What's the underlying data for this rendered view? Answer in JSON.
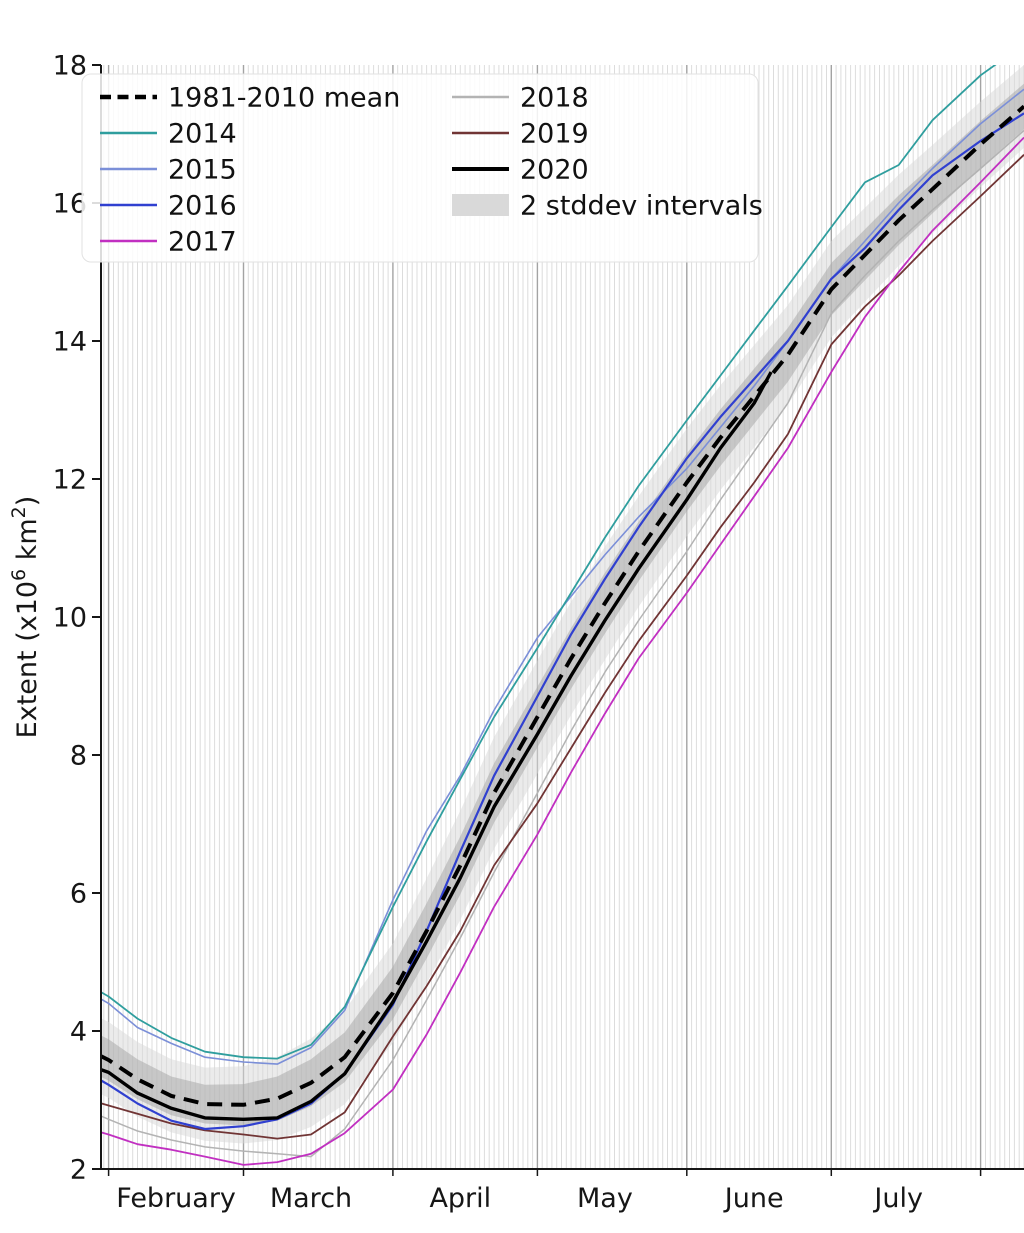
{
  "page": {
    "background": "#ffffff"
  },
  "chart_data": {
    "type": "line",
    "title": "",
    "xlabel": "",
    "ylabel": "Extent (x10^6 km^2)",
    "ylabel_parts": {
      "prefix": "Extent (x10",
      "sup1": "6",
      "mid": " km",
      "sup2": "2",
      "suffix": ")"
    },
    "y_axis": {
      "ticks": [
        2,
        4,
        6,
        8,
        10,
        12,
        14,
        16,
        18
      ],
      "range": [
        2,
        18
      ],
      "tick_color": "#161616"
    },
    "x_axis": {
      "start_date": "Jan 30",
      "end_date": "Aug 10",
      "range_days": [
        0,
        192
      ],
      "month_labels": [
        "February",
        "March",
        "April",
        "May",
        "June",
        "July"
      ],
      "month_label_days": [
        16,
        44,
        75,
        105,
        136,
        166
      ],
      "month_first_days": [
        2,
        30,
        61,
        91,
        122,
        152,
        183
      ],
      "gridlines": "daily-vertical",
      "minor_grid_color": "#dcdcdc",
      "major_grid_color": "#a3a3a3"
    },
    "sample_dates": [
      "Jan 30",
      "Feb 1",
      "Feb 7",
      "Feb 14",
      "Feb 21",
      "Mar 1",
      "Mar 8",
      "Mar 15",
      "Mar 22",
      "Apr 1",
      "Apr 8",
      "Apr 15",
      "Apr 22",
      "May 1",
      "May 8",
      "May 15",
      "May 22",
      "Jun 1",
      "Jun 8",
      "Jun 15",
      "Jun 22",
      "Jul 1",
      "Jul 8",
      "Jul 15",
      "Jul 22",
      "Aug 1",
      "Aug 10"
    ],
    "sample_days": [
      0,
      2,
      8,
      15,
      22,
      30,
      37,
      44,
      51,
      61,
      68,
      75,
      82,
      91,
      98,
      105,
      112,
      122,
      129,
      136,
      143,
      152,
      159,
      166,
      173,
      183,
      192
    ],
    "series": [
      {
        "name": "2018",
        "color": "#b3b3b3",
        "line_width": 1.5,
        "dash": null,
        "days": [
          0,
          2,
          8,
          15,
          22,
          30,
          37,
          44,
          51,
          61,
          68,
          75,
          82,
          91,
          98,
          105,
          112,
          122,
          129,
          136,
          143,
          152,
          159,
          166,
          173,
          183,
          192
        ],
        "values": [
          2.78,
          2.72,
          2.55,
          2.42,
          2.32,
          2.26,
          2.22,
          2.18,
          2.58,
          3.58,
          4.45,
          5.35,
          6.3,
          7.45,
          8.35,
          9.2,
          9.95,
          10.95,
          11.7,
          12.4,
          13.1,
          14.4,
          14.95,
          15.45,
          15.9,
          16.5,
          17.05
        ]
      },
      {
        "name": "2019",
        "color": "#703434",
        "line_width": 1.8,
        "dash": null,
        "days": [
          0,
          2,
          8,
          15,
          22,
          30,
          37,
          44,
          51,
          61,
          68,
          75,
          82,
          91,
          98,
          105,
          112,
          122,
          129,
          136,
          143,
          152,
          159,
          166,
          173,
          183,
          192
        ],
        "values": [
          2.96,
          2.92,
          2.8,
          2.66,
          2.56,
          2.5,
          2.44,
          2.5,
          2.82,
          3.92,
          4.65,
          5.45,
          6.4,
          7.3,
          8.1,
          8.9,
          9.65,
          10.6,
          11.3,
          11.95,
          12.65,
          13.95,
          14.5,
          14.95,
          15.45,
          16.1,
          16.7
        ]
      },
      {
        "name": "2017",
        "color": "#c12fc1",
        "line_width": 1.8,
        "dash": null,
        "days": [
          0,
          2,
          8,
          15,
          22,
          30,
          37,
          44,
          51,
          61,
          68,
          75,
          82,
          91,
          98,
          105,
          112,
          122,
          129,
          136,
          143,
          152,
          159,
          166,
          173,
          183,
          192
        ],
        "values": [
          2.54,
          2.5,
          2.36,
          2.28,
          2.18,
          2.06,
          2.1,
          2.22,
          2.52,
          3.15,
          3.95,
          4.85,
          5.8,
          6.85,
          7.75,
          8.6,
          9.4,
          10.35,
          11.05,
          11.75,
          12.45,
          13.55,
          14.35,
          15.0,
          15.6,
          16.3,
          16.95
        ]
      },
      {
        "name": "2015",
        "color": "#7b8fd8",
        "line_width": 1.6,
        "dash": null,
        "days": [
          0,
          2,
          8,
          15,
          22,
          30,
          37,
          44,
          51,
          61,
          68,
          75,
          82,
          91,
          98,
          105,
          112,
          122,
          129,
          136,
          143,
          152,
          159,
          166,
          173,
          183,
          192
        ],
        "values": [
          4.48,
          4.4,
          4.05,
          3.82,
          3.62,
          3.55,
          3.52,
          3.76,
          4.3,
          5.9,
          6.9,
          7.7,
          8.65,
          9.7,
          10.3,
          10.9,
          11.45,
          12.15,
          12.75,
          13.35,
          14.0,
          14.9,
          15.45,
          16.0,
          16.5,
          17.15,
          17.65
        ]
      },
      {
        "name": "2014",
        "color": "#2f9e9e",
        "line_width": 1.8,
        "dash": null,
        "days": [
          0,
          2,
          8,
          15,
          22,
          30,
          37,
          44,
          51,
          61,
          68,
          75,
          82,
          91,
          98,
          105,
          112,
          122,
          129,
          136,
          143,
          152,
          159,
          166,
          173,
          183,
          192
        ],
        "values": [
          4.58,
          4.5,
          4.18,
          3.9,
          3.7,
          3.62,
          3.6,
          3.8,
          4.35,
          5.8,
          6.75,
          7.65,
          8.55,
          9.55,
          10.35,
          11.15,
          11.9,
          12.85,
          13.5,
          14.15,
          14.8,
          15.65,
          16.3,
          16.55,
          17.2,
          17.85,
          18.3
        ]
      },
      {
        "name": "2016",
        "color": "#3040d0",
        "line_width": 2.2,
        "dash": null,
        "days": [
          0,
          2,
          8,
          15,
          22,
          30,
          37,
          44,
          51,
          61,
          68,
          75,
          82,
          91,
          98,
          105,
          112,
          122,
          129,
          136,
          143,
          152,
          159,
          166,
          173,
          183,
          192
        ],
        "values": [
          3.3,
          3.22,
          2.95,
          2.7,
          2.58,
          2.62,
          2.72,
          2.95,
          3.38,
          4.38,
          5.45,
          6.6,
          7.7,
          8.85,
          9.75,
          10.55,
          11.3,
          12.3,
          12.9,
          13.45,
          14.0,
          14.9,
          15.35,
          15.9,
          16.4,
          16.9,
          17.3
        ]
      },
      {
        "name": "2020",
        "color": "#000000",
        "line_width": 3.4,
        "dash": null,
        "days": [
          0,
          2,
          8,
          15,
          22,
          30,
          37,
          44,
          51,
          61,
          68,
          75,
          82,
          91,
          98,
          105,
          112,
          122,
          129,
          136,
          139.5
        ],
        "values": [
          3.45,
          3.4,
          3.1,
          2.88,
          2.74,
          2.72,
          2.74,
          2.98,
          3.38,
          4.42,
          5.3,
          6.22,
          7.25,
          8.3,
          9.15,
          9.95,
          10.7,
          11.7,
          12.45,
          13.1,
          13.55
        ]
      },
      {
        "name": "1981-2010 mean",
        "color": "#000000",
        "line_width": 4,
        "dash": [
          15,
          9
        ],
        "days": [
          0,
          2,
          8,
          15,
          22,
          30,
          37,
          44,
          51,
          61,
          68,
          75,
          82,
          91,
          98,
          105,
          112,
          122,
          129,
          136,
          143,
          152,
          159,
          166,
          173,
          183,
          192
        ],
        "values": [
          3.65,
          3.58,
          3.3,
          3.06,
          2.94,
          2.93,
          3.02,
          3.25,
          3.62,
          4.55,
          5.45,
          6.4,
          7.45,
          8.55,
          9.4,
          10.2,
          10.95,
          11.95,
          12.6,
          13.2,
          13.8,
          14.75,
          15.25,
          15.75,
          16.2,
          16.85,
          17.4
        ]
      }
    ],
    "stddev_band": {
      "label": "2 stddev intervals",
      "mean_series": "1981-2010 mean",
      "days": [
        0,
        2,
        8,
        15,
        22,
        30,
        37,
        44,
        51,
        61,
        68,
        75,
        82,
        91,
        98,
        105,
        112,
        122,
        129,
        136,
        143,
        152,
        159,
        166,
        173,
        183,
        192
      ],
      "inner_half_width": [
        0.3,
        0.3,
        0.29,
        0.28,
        0.28,
        0.3,
        0.32,
        0.34,
        0.36,
        0.38,
        0.4,
        0.42,
        0.43,
        0.44,
        0.44,
        0.44,
        0.43,
        0.42,
        0.41,
        0.4,
        0.39,
        0.38,
        0.37,
        0.36,
        0.35,
        0.34,
        0.33
      ],
      "outer_half_width": [
        0.55,
        0.55,
        0.54,
        0.53,
        0.53,
        0.56,
        0.6,
        0.64,
        0.68,
        0.72,
        0.76,
        0.79,
        0.81,
        0.82,
        0.82,
        0.82,
        0.8,
        0.78,
        0.76,
        0.74,
        0.72,
        0.7,
        0.68,
        0.66,
        0.64,
        0.62,
        0.6
      ],
      "inner_color": "#aaaaaa",
      "outer_color": "#d7d7d7"
    },
    "legend": {
      "position": "top-left",
      "columns": 2,
      "entries": [
        {
          "label": "1981-2010 mean",
          "type": "dashed-line",
          "color": "#000000"
        },
        {
          "label": "2014",
          "type": "line",
          "color": "#2f9e9e"
        },
        {
          "label": "2015",
          "type": "line",
          "color": "#7b8fd8"
        },
        {
          "label": "2016",
          "type": "line",
          "color": "#3040d0"
        },
        {
          "label": "2017",
          "type": "line",
          "color": "#c12fc1"
        },
        {
          "label": "2018",
          "type": "line",
          "color": "#b3b3b3"
        },
        {
          "label": "2019",
          "type": "line",
          "color": "#703434"
        },
        {
          "label": "2020",
          "type": "line",
          "color": "#000000"
        },
        {
          "label": "2 stddev intervals",
          "type": "patch",
          "color": "#d9d9d9"
        }
      ]
    }
  }
}
